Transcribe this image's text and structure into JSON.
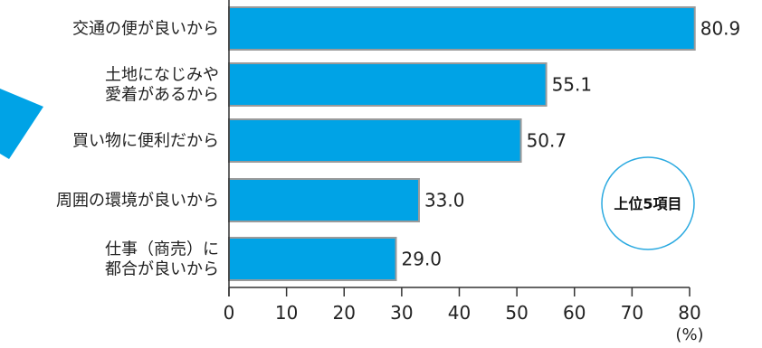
{
  "chart_data": {
    "type": "bar",
    "orientation": "horizontal",
    "categories": [
      [
        "交通の便が良いから"
      ],
      [
        "土地になじみや",
        "愛着があるから"
      ],
      [
        "買い物に便利だから"
      ],
      [
        "周囲の環境が良いから"
      ],
      [
        "仕事（商売）に",
        "都合が良いから"
      ]
    ],
    "values": [
      80.9,
      55.1,
      50.7,
      33.0,
      29.0
    ],
    "value_labels": [
      "80.9",
      "55.1",
      "50.7",
      "33.0",
      "29.0"
    ],
    "xlim": [
      0,
      80
    ],
    "xticks": [
      "0",
      "10",
      "20",
      "30",
      "40",
      "50",
      "60",
      "70",
      "80"
    ],
    "unit": "(%)",
    "badge": "上位5項目",
    "bar_color": "#00a3e6",
    "bar_edge_color": "#9a9a9a",
    "accent_triangle_color": "#00a3e6",
    "badge_border_color": "#29a9e0",
    "grid": false
  }
}
